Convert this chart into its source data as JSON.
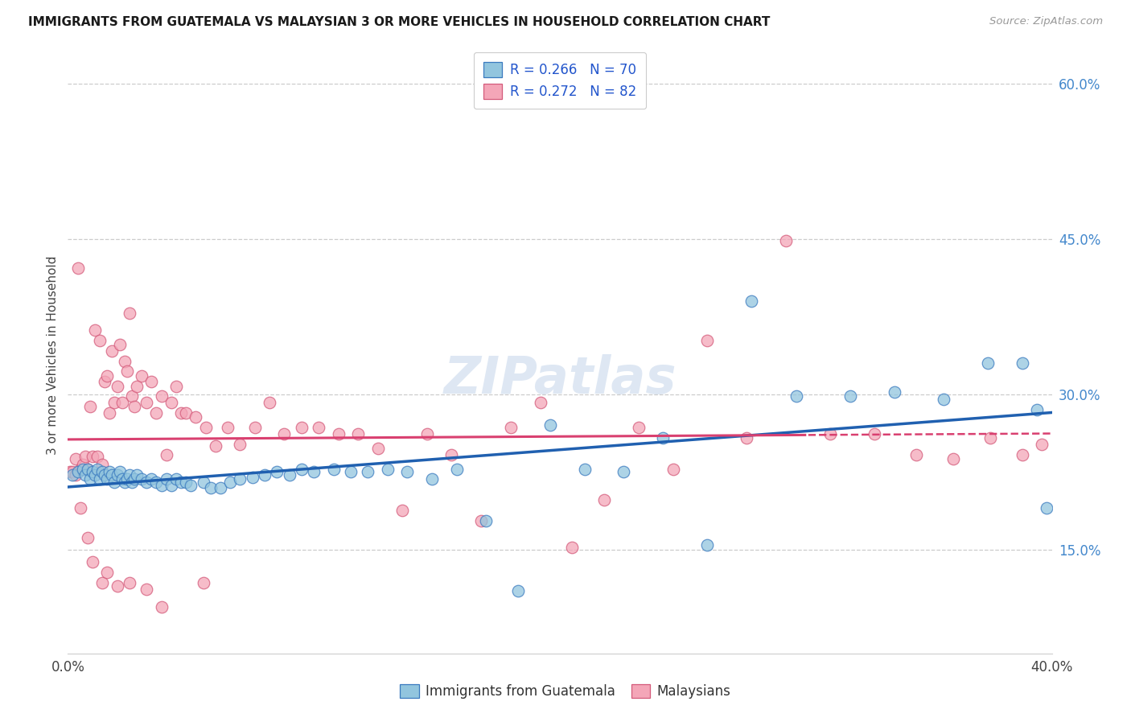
{
  "title": "IMMIGRANTS FROM GUATEMALA VS MALAYSIAN 3 OR MORE VEHICLES IN HOUSEHOLD CORRELATION CHART",
  "source": "Source: ZipAtlas.com",
  "ylabel": "3 or more Vehicles in Household",
  "xmin": 0.0,
  "xmax": 0.4,
  "ymin": 0.05,
  "ymax": 0.625,
  "x_ticks": [
    0.0,
    0.08,
    0.16,
    0.24,
    0.32,
    0.4
  ],
  "y_ticks_right": [
    0.15,
    0.3,
    0.45,
    0.6
  ],
  "y_tick_labels_right": [
    "15.0%",
    "30.0%",
    "45.0%",
    "60.0%"
  ],
  "color_blue": "#92c5de",
  "color_pink": "#f4a6b8",
  "edge_blue": "#3a7abf",
  "edge_pink": "#d45a7a",
  "line_blue": "#2060b0",
  "line_pink": "#d94070",
  "watermark": "ZIPatlas",
  "blue_x": [
    0.002,
    0.004,
    0.006,
    0.007,
    0.008,
    0.009,
    0.01,
    0.011,
    0.012,
    0.013,
    0.014,
    0.015,
    0.016,
    0.017,
    0.018,
    0.019,
    0.02,
    0.021,
    0.022,
    0.023,
    0.024,
    0.025,
    0.026,
    0.027,
    0.028,
    0.03,
    0.032,
    0.034,
    0.036,
    0.038,
    0.04,
    0.042,
    0.044,
    0.046,
    0.048,
    0.05,
    0.055,
    0.058,
    0.062,
    0.066,
    0.07,
    0.075,
    0.08,
    0.085,
    0.09,
    0.095,
    0.1,
    0.108,
    0.115,
    0.122,
    0.13,
    0.138,
    0.148,
    0.158,
    0.17,
    0.183,
    0.196,
    0.21,
    0.226,
    0.242,
    0.26,
    0.278,
    0.296,
    0.318,
    0.336,
    0.356,
    0.374,
    0.388,
    0.394,
    0.398
  ],
  "blue_y": [
    0.222,
    0.225,
    0.228,
    0.222,
    0.228,
    0.218,
    0.225,
    0.222,
    0.228,
    0.218,
    0.225,
    0.222,
    0.218,
    0.225,
    0.222,
    0.215,
    0.222,
    0.225,
    0.218,
    0.215,
    0.218,
    0.222,
    0.215,
    0.218,
    0.222,
    0.218,
    0.215,
    0.218,
    0.215,
    0.212,
    0.218,
    0.212,
    0.218,
    0.215,
    0.215,
    0.212,
    0.215,
    0.21,
    0.21,
    0.215,
    0.218,
    0.22,
    0.222,
    0.225,
    0.222,
    0.228,
    0.225,
    0.228,
    0.225,
    0.225,
    0.228,
    0.225,
    0.218,
    0.228,
    0.178,
    0.11,
    0.27,
    0.228,
    0.225,
    0.258,
    0.155,
    0.39,
    0.298,
    0.298,
    0.302,
    0.295,
    0.33,
    0.33,
    0.285,
    0.19
  ],
  "pink_x": [
    0.001,
    0.002,
    0.003,
    0.004,
    0.005,
    0.006,
    0.007,
    0.008,
    0.009,
    0.01,
    0.011,
    0.012,
    0.013,
    0.014,
    0.015,
    0.016,
    0.017,
    0.018,
    0.019,
    0.02,
    0.021,
    0.022,
    0.023,
    0.024,
    0.025,
    0.026,
    0.027,
    0.028,
    0.03,
    0.032,
    0.034,
    0.036,
    0.038,
    0.04,
    0.042,
    0.044,
    0.046,
    0.048,
    0.052,
    0.056,
    0.06,
    0.065,
    0.07,
    0.076,
    0.082,
    0.088,
    0.095,
    0.102,
    0.11,
    0.118,
    0.126,
    0.136,
    0.146,
    0.156,
    0.168,
    0.18,
    0.192,
    0.205,
    0.218,
    0.232,
    0.246,
    0.26,
    0.276,
    0.292,
    0.31,
    0.328,
    0.345,
    0.36,
    0.375,
    0.388,
    0.396,
    0.01,
    0.014,
    0.003,
    0.005,
    0.008,
    0.016,
    0.02,
    0.025,
    0.032,
    0.038,
    0.055
  ],
  "pink_y": [
    0.225,
    0.225,
    0.238,
    0.422,
    0.228,
    0.232,
    0.24,
    0.228,
    0.288,
    0.24,
    0.362,
    0.24,
    0.352,
    0.232,
    0.312,
    0.318,
    0.282,
    0.342,
    0.292,
    0.308,
    0.348,
    0.292,
    0.332,
    0.322,
    0.378,
    0.298,
    0.288,
    0.308,
    0.318,
    0.292,
    0.312,
    0.282,
    0.298,
    0.242,
    0.292,
    0.308,
    0.282,
    0.282,
    0.278,
    0.268,
    0.25,
    0.268,
    0.252,
    0.268,
    0.292,
    0.262,
    0.268,
    0.268,
    0.262,
    0.262,
    0.248,
    0.188,
    0.262,
    0.242,
    0.178,
    0.268,
    0.292,
    0.152,
    0.198,
    0.268,
    0.228,
    0.352,
    0.258,
    0.448,
    0.262,
    0.262,
    0.242,
    0.238,
    0.258,
    0.242,
    0.252,
    0.138,
    0.118,
    0.222,
    0.19,
    0.162,
    0.128,
    0.115,
    0.118,
    0.112,
    0.095,
    0.118
  ]
}
